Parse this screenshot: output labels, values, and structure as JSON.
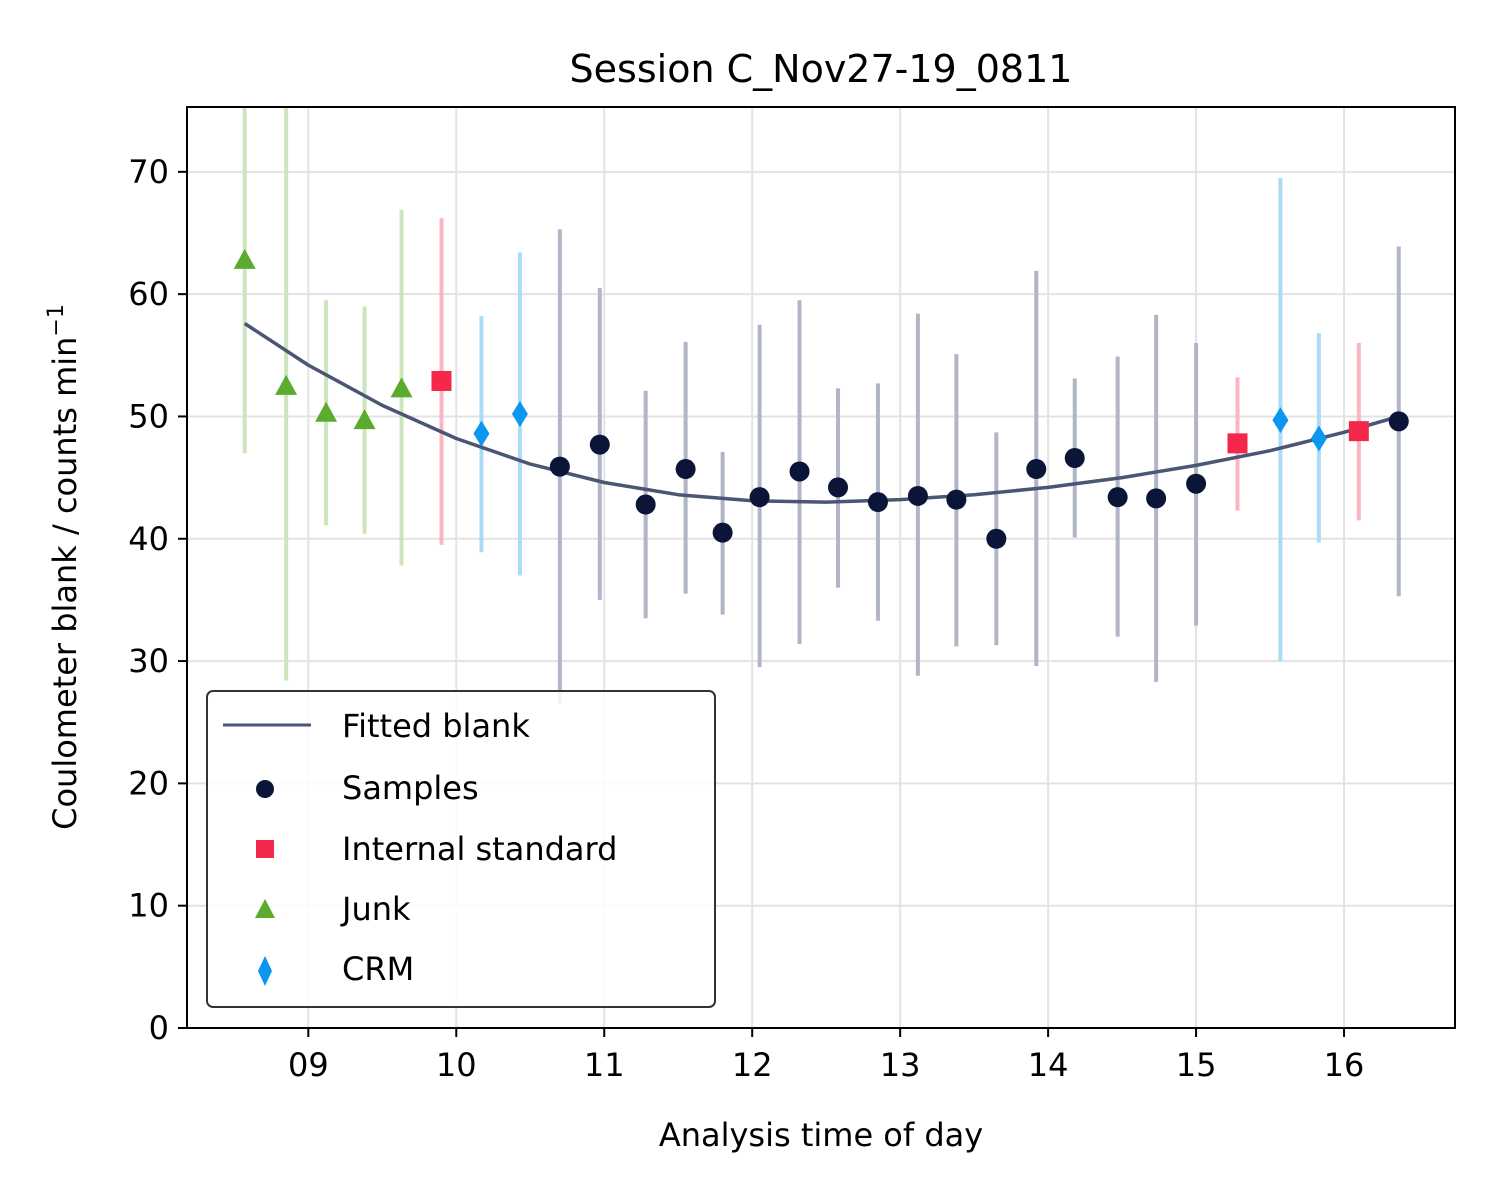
{
  "chart_data": {
    "type": "scatter",
    "title": "Session C_Nov27-19_0811",
    "xlabel": "Analysis time of day",
    "ylabel": "Coulometer blank / counts min",
    "ylabel_sup": "−1",
    "xlim": [
      8.18,
      16.75
    ],
    "ylim": [
      0,
      75.3
    ],
    "xticks": [
      9,
      10,
      11,
      12,
      13,
      14,
      15,
      16
    ],
    "xtick_labels": [
      "09",
      "10",
      "11",
      "12",
      "13",
      "14",
      "15",
      "16"
    ],
    "yticks": [
      0,
      10,
      20,
      30,
      40,
      50,
      60,
      70
    ],
    "grid": true,
    "legend_position": "lower-left",
    "fit": {
      "name": "Fitted blank",
      "color": "#4b5675",
      "x": [
        8.57,
        9.0,
        9.5,
        10.0,
        10.5,
        11.0,
        11.5,
        12.0,
        12.5,
        13.0,
        13.5,
        14.0,
        14.5,
        15.0,
        15.5,
        16.0,
        16.37
      ],
      "y": [
        57.6,
        54.2,
        50.9,
        48.2,
        46.1,
        44.6,
        43.6,
        43.1,
        43.0,
        43.2,
        43.6,
        44.2,
        45.0,
        46.0,
        47.2,
        48.7,
        50.0
      ]
    },
    "series": [
      {
        "name": "Samples",
        "color": "#0a1538",
        "errorbar_color": "#b0b6c8",
        "marker": "circle",
        "points": [
          {
            "x": 10.7,
            "y": 45.9,
            "err_low": 26.5,
            "err_high": 65.3
          },
          {
            "x": 10.97,
            "y": 47.7,
            "err_low": 35.0,
            "err_high": 60.5
          },
          {
            "x": 11.28,
            "y": 42.8,
            "err_low": 33.5,
            "err_high": 52.1
          },
          {
            "x": 11.55,
            "y": 45.7,
            "err_low": 35.5,
            "err_high": 56.1
          },
          {
            "x": 11.8,
            "y": 40.5,
            "err_low": 33.8,
            "err_high": 47.1
          },
          {
            "x": 12.05,
            "y": 43.4,
            "err_low": 29.5,
            "err_high": 57.5
          },
          {
            "x": 12.32,
            "y": 45.5,
            "err_low": 31.4,
            "err_high": 59.5
          },
          {
            "x": 12.58,
            "y": 44.2,
            "err_low": 36.0,
            "err_high": 52.3
          },
          {
            "x": 12.85,
            "y": 43.0,
            "err_low": 33.3,
            "err_high": 52.7
          },
          {
            "x": 13.12,
            "y": 43.5,
            "err_low": 28.8,
            "err_high": 58.4
          },
          {
            "x": 13.38,
            "y": 43.2,
            "err_low": 31.2,
            "err_high": 55.1
          },
          {
            "x": 13.65,
            "y": 40.0,
            "err_low": 31.3,
            "err_high": 48.7
          },
          {
            "x": 13.92,
            "y": 45.7,
            "err_low": 29.6,
            "err_high": 61.9
          },
          {
            "x": 14.18,
            "y": 46.6,
            "err_low": 40.1,
            "err_high": 53.1
          },
          {
            "x": 14.47,
            "y": 43.4,
            "err_low": 32.0,
            "err_high": 54.9
          },
          {
            "x": 14.73,
            "y": 43.3,
            "err_low": 28.3,
            "err_high": 58.3
          },
          {
            "x": 15.0,
            "y": 44.5,
            "err_low": 32.9,
            "err_high": 56.0
          },
          {
            "x": 16.37,
            "y": 49.6,
            "err_low": 35.3,
            "err_high": 63.9
          }
        ]
      },
      {
        "name": "Internal standard",
        "color": "#f4284a",
        "errorbar_color": "#fbb6c1",
        "marker": "square",
        "points": [
          {
            "x": 9.9,
            "y": 52.9,
            "err_low": 39.5,
            "err_high": 66.2
          },
          {
            "x": 15.28,
            "y": 47.8,
            "err_low": 42.3,
            "err_high": 53.2
          },
          {
            "x": 16.1,
            "y": 48.8,
            "err_low": 41.5,
            "err_high": 56.0
          }
        ]
      },
      {
        "name": "Junk",
        "color": "#5aab2e",
        "errorbar_color": "#cde5bd",
        "marker": "triangle",
        "points": [
          {
            "x": 8.57,
            "y": 62.8,
            "err_low": 47.0,
            "err_high": 75.3
          },
          {
            "x": 8.85,
            "y": 52.5,
            "err_low": 28.4,
            "err_high": 75.3
          },
          {
            "x": 9.12,
            "y": 50.3,
            "err_low": 41.1,
            "err_high": 59.5
          },
          {
            "x": 9.38,
            "y": 49.7,
            "err_low": 40.4,
            "err_high": 59.0
          },
          {
            "x": 9.63,
            "y": 52.3,
            "err_low": 37.8,
            "err_high": 66.9
          }
        ]
      },
      {
        "name": "CRM",
        "color": "#0b97ef",
        "errorbar_color": "#aadcf9",
        "marker": "diamond",
        "points": [
          {
            "x": 10.17,
            "y": 48.6,
            "err_low": 38.9,
            "err_high": 58.2
          },
          {
            "x": 10.43,
            "y": 50.2,
            "err_low": 37.0,
            "err_high": 63.4
          },
          {
            "x": 15.57,
            "y": 49.7,
            "err_low": 30.0,
            "err_high": 69.5
          },
          {
            "x": 15.83,
            "y": 48.2,
            "err_low": 39.7,
            "err_high": 56.8
          }
        ]
      }
    ]
  }
}
